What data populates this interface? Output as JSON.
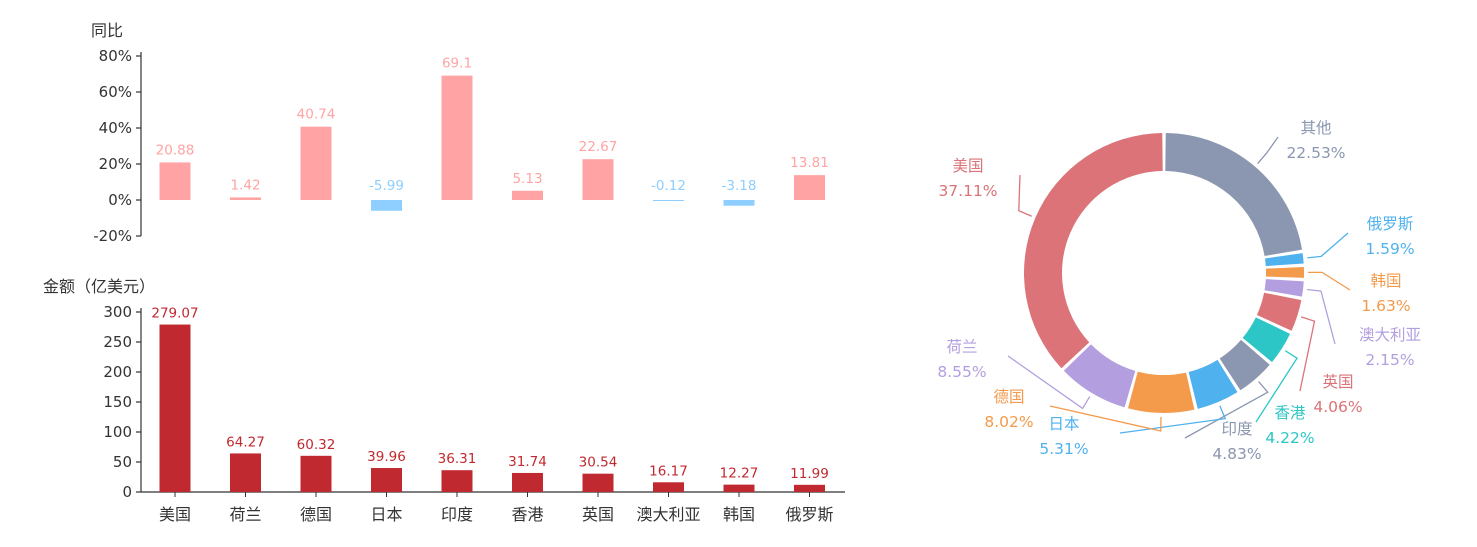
{
  "chart_data": [
    {
      "type": "bar",
      "name": "yoy-growth",
      "ytitle": "同比",
      "categories": [
        "美国",
        "荷兰",
        "德国",
        "日本",
        "印度",
        "香港",
        "英国",
        "澳大利亚",
        "韩国",
        "俄罗斯"
      ],
      "values": [
        20.88,
        1.42,
        40.74,
        -5.99,
        69.1,
        5.13,
        22.67,
        -0.12,
        -3.18,
        13.81
      ],
      "value_labels": [
        "20.88",
        "1.42",
        "40.74",
        "-5.99",
        "69.1",
        "5.13",
        "22.67",
        "-0.12",
        "-3.18",
        "13.81"
      ],
      "ylim": [
        -20,
        80
      ],
      "yticks": [
        -20,
        0,
        20,
        40,
        60,
        80
      ],
      "ytick_labels": [
        "-20%",
        "0%",
        "20%",
        "40%",
        "60%",
        "80%"
      ],
      "positive_color": "#ffa3a4",
      "negative_color": "#8ecfff"
    },
    {
      "type": "bar",
      "name": "amount",
      "ytitle": "金额（亿美元）",
      "categories": [
        "美国",
        "荷兰",
        "德国",
        "日本",
        "印度",
        "香港",
        "英国",
        "澳大利亚",
        "韩国",
        "俄罗斯"
      ],
      "values": [
        279.07,
        64.27,
        60.32,
        39.96,
        36.31,
        31.74,
        30.54,
        16.17,
        12.27,
        11.99
      ],
      "value_labels": [
        "279.07",
        "64.27",
        "60.32",
        "39.96",
        "36.31",
        "31.74",
        "30.54",
        "16.17",
        "12.27",
        "11.99"
      ],
      "ylim": [
        0,
        300
      ],
      "yticks": [
        0,
        50,
        100,
        150,
        200,
        250,
        300
      ],
      "ytick_labels": [
        "0",
        "50",
        "100",
        "150",
        "200",
        "250",
        "300"
      ],
      "color": "#c0292f"
    },
    {
      "type": "pie",
      "name": "share-donut",
      "slices": [
        {
          "label": "其他",
          "percent": 22.53,
          "percent_text": "22.53%",
          "color": "#8b97b0",
          "text_color": "#8b97b0",
          "side": "right"
        },
        {
          "label": "俄罗斯",
          "percent": 1.59,
          "percent_text": "1.59%",
          "color": "#4fb1ee",
          "text_color": "#4fb1ee",
          "side": "right"
        },
        {
          "label": "韩国",
          "percent": 1.63,
          "percent_text": "1.63%",
          "color": "#f49a4b",
          "text_color": "#f49a4b",
          "side": "right"
        },
        {
          "label": "澳大利亚",
          "percent": 2.15,
          "percent_text": "2.15%",
          "color": "#b39fe0",
          "text_color": "#b39fe0",
          "side": "right"
        },
        {
          "label": "英国",
          "percent": 4.06,
          "percent_text": "4.06%",
          "color": "#db7378",
          "text_color": "#db7378",
          "side": "right"
        },
        {
          "label": "香港",
          "percent": 4.22,
          "percent_text": "4.22%",
          "color": "#2cc6c6",
          "text_color": "#2cc6c6",
          "side": "right"
        },
        {
          "label": "印度",
          "percent": 4.83,
          "percent_text": "4.83%",
          "color": "#8b97b0",
          "text_color": "#8b97b0",
          "side": "left"
        },
        {
          "label": "日本",
          "percent": 5.31,
          "percent_text": "5.31%",
          "color": "#4fb1ee",
          "text_color": "#4fb1ee",
          "side": "left"
        },
        {
          "label": "德国",
          "percent": 8.02,
          "percent_text": "8.02%",
          "color": "#f49a4b",
          "text_color": "#f49a4b",
          "side": "left"
        },
        {
          "label": "荷兰",
          "percent": 8.55,
          "percent_text": "8.55%",
          "color": "#b39fe0",
          "text_color": "#b39fe0",
          "side": "left"
        },
        {
          "label": "美国",
          "percent": 37.11,
          "percent_text": "37.11%",
          "color": "#db7378",
          "text_color": "#db7378",
          "side": "left"
        }
      ]
    }
  ]
}
